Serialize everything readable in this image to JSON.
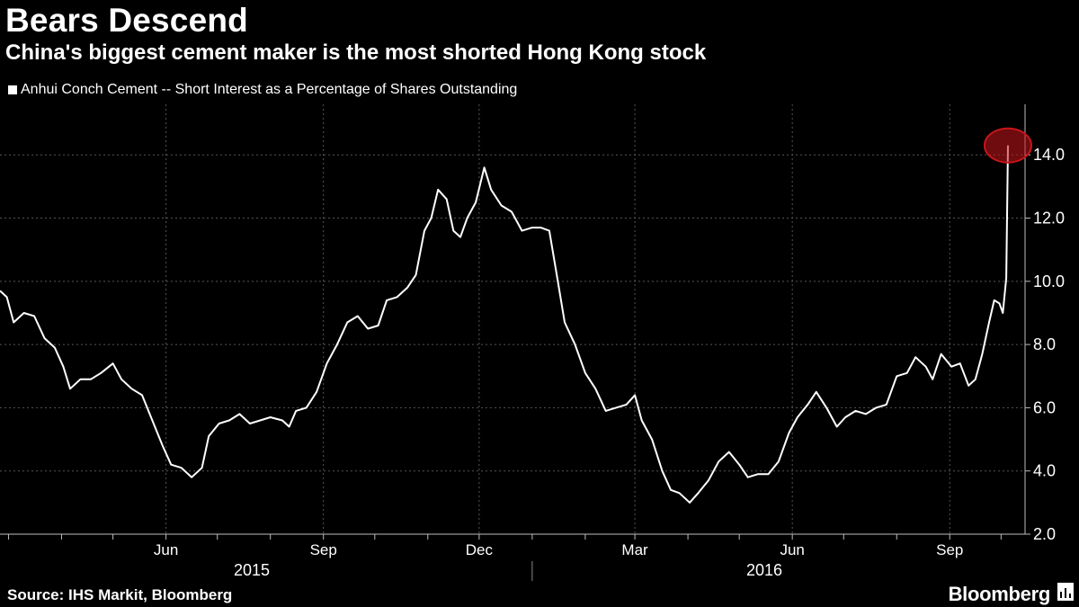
{
  "header": {
    "title": "Bears Descend",
    "subtitle": "China's biggest cement maker is the most shorted Hong Kong stock"
  },
  "legend": {
    "label": "Anhui Conch Cement -- Short Interest as a Percentage of Shares Outstanding"
  },
  "footer": {
    "source": "Source: IHS Markit, Bloomberg",
    "brand": "Bloomberg"
  },
  "colors": {
    "background": "#000000",
    "line": "#ffffff",
    "grid": "#555555",
    "highlight": "#c8151b"
  },
  "chart_data": {
    "type": "line",
    "title": "Bears Descend",
    "subtitle": "China's biggest cement maker is the most shorted Hong Kong stock",
    "xlabel": "",
    "ylabel": "",
    "ylim": [
      2,
      15.6
    ],
    "yticks": [
      "2.0",
      "4.0",
      "6.0",
      "8.0",
      "10.0",
      "12.0",
      "14.0"
    ],
    "xlim": [
      "2015-02-24",
      "2016-10-15"
    ],
    "month_labels": [
      {
        "label": "Jun",
        "date": "2015-06-01"
      },
      {
        "label": "Sep",
        "date": "2015-09-01"
      },
      {
        "label": "Dec",
        "date": "2015-12-01"
      },
      {
        "label": "Mar",
        "date": "2016-03-01"
      },
      {
        "label": "Jun",
        "date": "2016-06-01"
      },
      {
        "label": "Sep",
        "date": "2016-09-01"
      }
    ],
    "year_labels": [
      {
        "label": "2015"
      },
      {
        "label": "2016"
      }
    ],
    "grid": true,
    "legend_position": "top-left",
    "highlight": {
      "date": "2016-10-05",
      "value": 14.3
    },
    "series": [
      {
        "name": "Anhui Conch Cement -- Short Interest as a Percentage of Shares Outstanding",
        "points": [
          [
            "2015-02-24",
            9.7
          ],
          [
            "2015-02-28",
            9.5
          ],
          [
            "2015-03-04",
            8.7
          ],
          [
            "2015-03-10",
            9.0
          ],
          [
            "2015-03-16",
            8.9
          ],
          [
            "2015-03-22",
            8.2
          ],
          [
            "2015-03-28",
            7.9
          ],
          [
            "2015-04-02",
            7.3
          ],
          [
            "2015-04-06",
            6.6
          ],
          [
            "2015-04-12",
            6.9
          ],
          [
            "2015-04-18",
            6.9
          ],
          [
            "2015-04-24",
            7.1
          ],
          [
            "2015-05-01",
            7.4
          ],
          [
            "2015-05-06",
            6.9
          ],
          [
            "2015-05-12",
            6.6
          ],
          [
            "2015-05-18",
            6.4
          ],
          [
            "2015-05-24",
            5.6
          ],
          [
            "2015-05-30",
            4.8
          ],
          [
            "2015-06-04",
            4.2
          ],
          [
            "2015-06-10",
            4.1
          ],
          [
            "2015-06-16",
            3.8
          ],
          [
            "2015-06-22",
            4.1
          ],
          [
            "2015-06-26",
            5.1
          ],
          [
            "2015-07-02",
            5.5
          ],
          [
            "2015-07-08",
            5.6
          ],
          [
            "2015-07-14",
            5.8
          ],
          [
            "2015-07-20",
            5.5
          ],
          [
            "2015-07-26",
            5.6
          ],
          [
            "2015-08-01",
            5.7
          ],
          [
            "2015-08-08",
            5.6
          ],
          [
            "2015-08-12",
            5.4
          ],
          [
            "2015-08-16",
            5.9
          ],
          [
            "2015-08-22",
            6.0
          ],
          [
            "2015-08-28",
            6.5
          ],
          [
            "2015-09-03",
            7.4
          ],
          [
            "2015-09-09",
            8.0
          ],
          [
            "2015-09-15",
            8.7
          ],
          [
            "2015-09-21",
            8.9
          ],
          [
            "2015-09-27",
            8.5
          ],
          [
            "2015-10-03",
            8.6
          ],
          [
            "2015-10-08",
            9.4
          ],
          [
            "2015-10-14",
            9.5
          ],
          [
            "2015-10-20",
            9.8
          ],
          [
            "2015-10-25",
            10.2
          ],
          [
            "2015-10-30",
            11.6
          ],
          [
            "2015-11-03",
            12.0
          ],
          [
            "2015-11-07",
            12.9
          ],
          [
            "2015-11-12",
            12.6
          ],
          [
            "2015-11-16",
            11.6
          ],
          [
            "2015-11-20",
            11.4
          ],
          [
            "2015-11-24",
            12.0
          ],
          [
            "2015-11-29",
            12.5
          ],
          [
            "2015-12-04",
            13.6
          ],
          [
            "2015-12-08",
            12.9
          ],
          [
            "2015-12-14",
            12.4
          ],
          [
            "2015-12-20",
            12.2
          ],
          [
            "2015-12-26",
            11.6
          ],
          [
            "2016-01-01",
            11.7
          ],
          [
            "2016-01-06",
            11.7
          ],
          [
            "2016-01-11",
            11.6
          ],
          [
            "2016-01-16",
            10.0
          ],
          [
            "2016-01-20",
            8.7
          ],
          [
            "2016-01-26",
            8.0
          ],
          [
            "2016-02-01",
            7.1
          ],
          [
            "2016-02-07",
            6.6
          ],
          [
            "2016-02-13",
            5.9
          ],
          [
            "2016-02-19",
            6.0
          ],
          [
            "2016-02-25",
            6.1
          ],
          [
            "2016-03-01",
            6.4
          ],
          [
            "2016-03-05",
            5.6
          ],
          [
            "2016-03-11",
            5.0
          ],
          [
            "2016-03-17",
            4.0
          ],
          [
            "2016-03-22",
            3.4
          ],
          [
            "2016-03-27",
            3.3
          ],
          [
            "2016-04-02",
            3.0
          ],
          [
            "2016-04-07",
            3.3
          ],
          [
            "2016-04-13",
            3.7
          ],
          [
            "2016-04-19",
            4.3
          ],
          [
            "2016-04-25",
            4.6
          ],
          [
            "2016-05-01",
            4.2
          ],
          [
            "2016-05-06",
            3.8
          ],
          [
            "2016-05-12",
            3.9
          ],
          [
            "2016-05-18",
            3.9
          ],
          [
            "2016-05-24",
            4.3
          ],
          [
            "2016-05-30",
            5.2
          ],
          [
            "2016-06-04",
            5.7
          ],
          [
            "2016-06-10",
            6.1
          ],
          [
            "2016-06-15",
            6.5
          ],
          [
            "2016-06-21",
            6.0
          ],
          [
            "2016-06-27",
            5.4
          ],
          [
            "2016-07-02",
            5.7
          ],
          [
            "2016-07-08",
            5.9
          ],
          [
            "2016-07-14",
            5.8
          ],
          [
            "2016-07-20",
            6.0
          ],
          [
            "2016-07-26",
            6.1
          ],
          [
            "2016-08-01",
            7.0
          ],
          [
            "2016-08-07",
            7.1
          ],
          [
            "2016-08-12",
            7.6
          ],
          [
            "2016-08-18",
            7.3
          ],
          [
            "2016-08-22",
            6.9
          ],
          [
            "2016-08-27",
            7.7
          ],
          [
            "2016-09-02",
            7.3
          ],
          [
            "2016-09-07",
            7.4
          ],
          [
            "2016-09-12",
            6.7
          ],
          [
            "2016-09-16",
            6.9
          ],
          [
            "2016-09-20",
            7.7
          ],
          [
            "2016-09-24",
            8.7
          ],
          [
            "2016-09-27",
            9.4
          ],
          [
            "2016-09-30",
            9.3
          ],
          [
            "2016-10-02",
            9.0
          ],
          [
            "2016-10-04",
            10.1
          ],
          [
            "2016-10-05",
            14.3
          ]
        ]
      }
    ]
  }
}
